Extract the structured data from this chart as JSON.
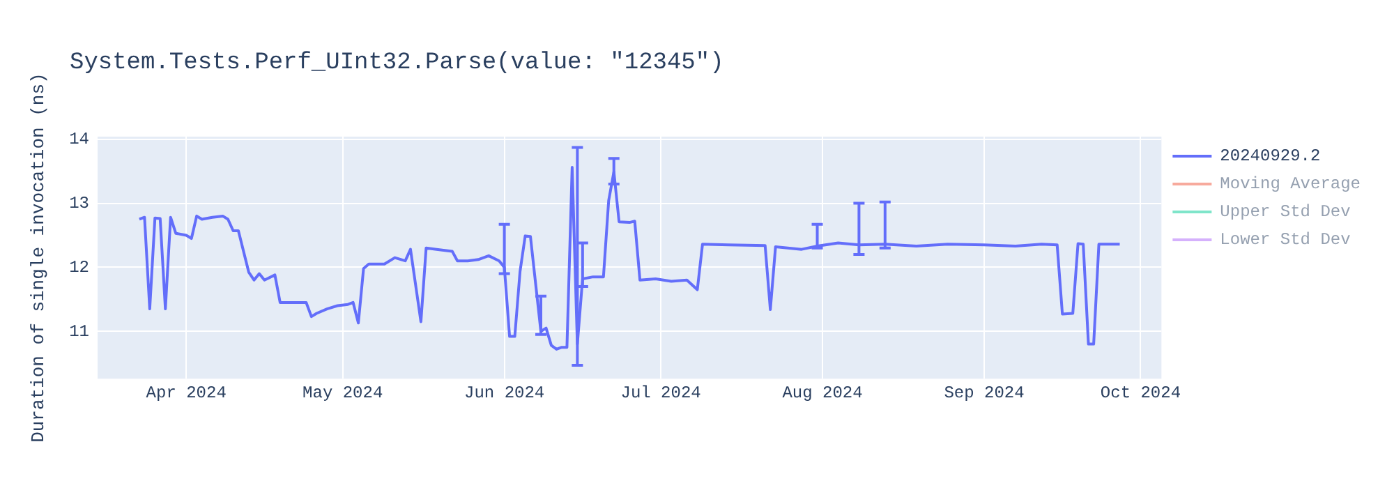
{
  "chart_data": {
    "type": "line",
    "title": "System.Tests.Perf_UInt32.Parse(value: \"12345\")",
    "ylabel": "Duration of single invocation (ns)",
    "x": [
      "2024-03-23",
      "2024-03-24",
      "2024-03-25",
      "2024-03-26",
      "2024-03-27",
      "2024-03-28",
      "2024-03-29",
      "2024-03-30",
      "2024-04-01",
      "2024-04-02",
      "2024-04-03",
      "2024-04-04",
      "2024-04-06",
      "2024-04-08",
      "2024-04-09",
      "2024-04-10",
      "2024-04-11",
      "2024-04-13",
      "2024-04-14",
      "2024-04-15",
      "2024-04-16",
      "2024-04-18",
      "2024-04-19",
      "2024-04-21",
      "2024-04-24",
      "2024-04-25",
      "2024-04-26",
      "2024-04-28",
      "2024-04-30",
      "2024-05-02",
      "2024-05-03",
      "2024-05-04",
      "2024-05-05",
      "2024-05-06",
      "2024-05-09",
      "2024-05-11",
      "2024-05-13",
      "2024-05-14",
      "2024-05-16",
      "2024-05-17",
      "2024-05-19",
      "2024-05-22",
      "2024-05-23",
      "2024-05-25",
      "2024-05-27",
      "2024-05-29",
      "2024-05-31",
      "2024-06-01",
      "2024-06-02",
      "2024-06-03",
      "2024-06-04",
      "2024-06-05",
      "2024-06-06",
      "2024-06-08",
      "2024-06-09",
      "2024-06-10",
      "2024-06-11",
      "2024-06-12",
      "2024-06-13",
      "2024-06-14",
      "2024-06-15",
      "2024-06-16",
      "2024-06-18",
      "2024-06-20",
      "2024-06-21",
      "2024-06-22",
      "2024-06-23",
      "2024-06-25",
      "2024-06-26",
      "2024-06-27",
      "2024-06-30",
      "2024-07-03",
      "2024-07-06",
      "2024-07-08",
      "2024-07-09",
      "2024-07-14",
      "2024-07-21",
      "2024-07-22",
      "2024-07-23",
      "2024-07-28",
      "2024-07-31",
      "2024-08-04",
      "2024-08-08",
      "2024-08-13",
      "2024-08-19",
      "2024-08-25",
      "2024-09-01",
      "2024-09-07",
      "2024-09-12",
      "2024-09-15",
      "2024-09-16",
      "2024-09-18",
      "2024-09-19",
      "2024-09-20",
      "2024-09-21",
      "2024-09-22",
      "2024-09-23",
      "2024-09-27"
    ],
    "series": [
      {
        "name": "20240929.2",
        "color": "#636efa",
        "values": [
          12.75,
          12.78,
          11.35,
          12.77,
          12.76,
          11.35,
          12.78,
          12.53,
          12.5,
          12.45,
          12.8,
          12.75,
          12.78,
          12.8,
          12.75,
          12.57,
          12.57,
          11.92,
          11.8,
          11.9,
          11.8,
          11.88,
          11.45,
          11.45,
          11.45,
          11.23,
          11.28,
          11.35,
          11.4,
          11.42,
          11.45,
          11.13,
          11.98,
          12.05,
          12.05,
          12.15,
          12.1,
          12.28,
          11.15,
          12.3,
          12.28,
          12.25,
          12.1,
          12.1,
          12.12,
          12.18,
          12.1,
          12.0,
          10.92,
          10.92,
          11.93,
          12.49,
          12.48,
          11.0,
          11.05,
          10.78,
          10.72,
          10.75,
          10.75,
          13.56,
          10.8,
          11.82,
          11.85,
          11.85,
          13.04,
          13.49,
          12.71,
          12.7,
          12.72,
          11.8,
          11.82,
          11.78,
          11.8,
          11.65,
          12.36,
          12.35,
          12.34,
          11.34,
          12.32,
          12.28,
          12.33,
          12.38,
          12.35,
          12.36,
          12.33,
          12.36,
          12.35,
          12.33,
          12.36,
          12.35,
          11.27,
          11.28,
          12.37,
          12.36,
          10.8,
          10.8,
          12.36,
          12.36
        ],
        "errors": [
          null,
          null,
          null,
          null,
          null,
          null,
          null,
          null,
          null,
          null,
          null,
          null,
          null,
          null,
          null,
          null,
          null,
          null,
          null,
          null,
          null,
          null,
          null,
          null,
          null,
          null,
          null,
          null,
          null,
          null,
          null,
          null,
          null,
          null,
          null,
          null,
          null,
          null,
          null,
          null,
          null,
          null,
          null,
          null,
          null,
          null,
          null,
          [
            11.9,
            12.67
          ],
          null,
          null,
          null,
          null,
          null,
          [
            10.95,
            11.55
          ],
          null,
          null,
          null,
          null,
          null,
          null,
          [
            10.47,
            13.87
          ],
          [
            11.7,
            12.38
          ],
          null,
          null,
          null,
          [
            13.3,
            13.7
          ],
          null,
          null,
          null,
          null,
          null,
          null,
          null,
          null,
          null,
          null,
          null,
          null,
          null,
          null,
          [
            12.3,
            12.67
          ],
          null,
          [
            12.2,
            13.0
          ],
          [
            12.3,
            13.02
          ],
          null,
          null,
          null,
          null,
          null,
          null,
          null,
          null,
          null,
          null,
          null,
          null,
          null,
          null
        ]
      },
      {
        "name": "Moving Average",
        "color": "#ef553b",
        "values": [
          null,
          null,
          null,
          null,
          null,
          null,
          null,
          null,
          null,
          null,
          null,
          null,
          null,
          null,
          null,
          null,
          null,
          null,
          null,
          null,
          null,
          null,
          null,
          null,
          null,
          null,
          null,
          null,
          null,
          null,
          null,
          null,
          null,
          null,
          null,
          null,
          null,
          null,
          null,
          null,
          null,
          null,
          null,
          null,
          null,
          null,
          null,
          null,
          null,
          null,
          null,
          null,
          null,
          null,
          null,
          null,
          null,
          null,
          null,
          null,
          null,
          null,
          null,
          null,
          null,
          null,
          null,
          null,
          null,
          null,
          null,
          null,
          null,
          null,
          null,
          null,
          null,
          null,
          null,
          null,
          null,
          null,
          null,
          null,
          null,
          null,
          null,
          null,
          null,
          null,
          null,
          null,
          null,
          null,
          null,
          null,
          null,
          null
        ]
      },
      {
        "name": "Upper Std Dev",
        "color": "#00cc96",
        "values": [
          null,
          null,
          null,
          null,
          null,
          null,
          null,
          null,
          null,
          null,
          null,
          null,
          null,
          null,
          null,
          null,
          null,
          null,
          null,
          null,
          null,
          null,
          null,
          null,
          null,
          null,
          null,
          null,
          null,
          null,
          null,
          null,
          null,
          null,
          null,
          null,
          null,
          null,
          null,
          null,
          null,
          null,
          null,
          null,
          null,
          null,
          null,
          null,
          null,
          null,
          null,
          null,
          null,
          null,
          null,
          null,
          null,
          null,
          null,
          null,
          null,
          null,
          null,
          null,
          null,
          null,
          null,
          null,
          null,
          null,
          null,
          null,
          null,
          null,
          null,
          null,
          null,
          null,
          null,
          null,
          null,
          null,
          null,
          null,
          null,
          null,
          null,
          null,
          null,
          null,
          null,
          null,
          null,
          null,
          null,
          null,
          null,
          null
        ]
      },
      {
        "name": "Lower Std Dev",
        "color": "#ab63fa",
        "values": [
          null,
          null,
          null,
          null,
          null,
          null,
          null,
          null,
          null,
          null,
          null,
          null,
          null,
          null,
          null,
          null,
          null,
          null,
          null,
          null,
          null,
          null,
          null,
          null,
          null,
          null,
          null,
          null,
          null,
          null,
          null,
          null,
          null,
          null,
          null,
          null,
          null,
          null,
          null,
          null,
          null,
          null,
          null,
          null,
          null,
          null,
          null,
          null,
          null,
          null,
          null,
          null,
          null,
          null,
          null,
          null,
          null,
          null,
          null,
          null,
          null,
          null,
          null,
          null,
          null,
          null,
          null,
          null,
          null,
          null,
          null,
          null,
          null,
          null,
          null,
          null,
          null,
          null,
          null,
          null,
          null,
          null,
          null,
          null,
          null,
          null,
          null,
          null,
          null,
          null,
          null,
          null,
          null,
          null,
          null,
          null,
          null,
          null
        ]
      }
    ],
    "xlim": [
      "2024-03-15",
      "2024-10-05"
    ],
    "xticks": [
      {
        "value": "2024-04-01",
        "label": "Apr 2024"
      },
      {
        "value": "2024-05-01",
        "label": "May 2024"
      },
      {
        "value": "2024-06-01",
        "label": "Jun 2024"
      },
      {
        "value": "2024-07-01",
        "label": "Jul 2024"
      },
      {
        "value": "2024-08-01",
        "label": "Aug 2024"
      },
      {
        "value": "2024-09-01",
        "label": "Sep 2024"
      },
      {
        "value": "2024-10-01",
        "label": "Oct 2024"
      }
    ],
    "ylim": [
      10.26,
      14.04
    ],
    "yticks": [
      11,
      12,
      13,
      14
    ],
    "grid": true,
    "legend": "top right",
    "marker": "none",
    "line_style": "solid"
  }
}
